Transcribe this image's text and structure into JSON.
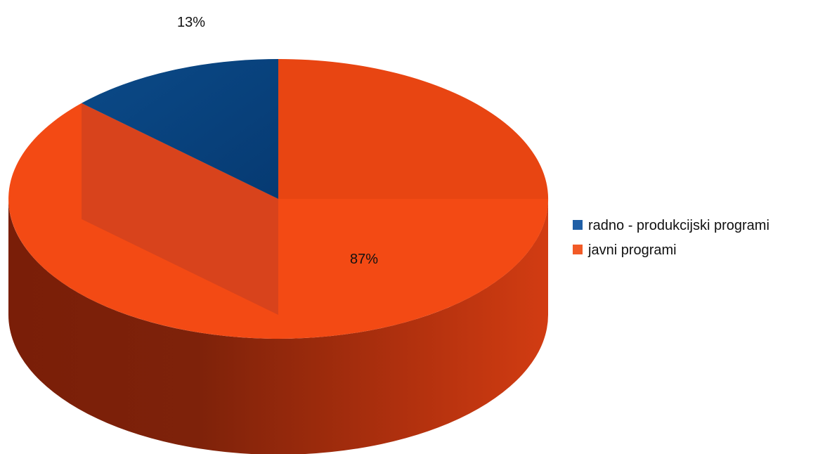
{
  "chart_data": {
    "type": "pie",
    "style": "3d-pie",
    "title": "",
    "categories": [
      "radno - produkcijski programi",
      "javni programi"
    ],
    "values": [
      13,
      87
    ],
    "labels": [
      "13%",
      "87%"
    ],
    "colors": [
      "#0a4a8a",
      "#f04a14"
    ],
    "legend": {
      "position": "right",
      "items": [
        {
          "label": "radno - produkcijski programi",
          "color": "#1f5fa6"
        },
        {
          "label": "javni programi",
          "color": "#f25a26"
        }
      ]
    }
  }
}
